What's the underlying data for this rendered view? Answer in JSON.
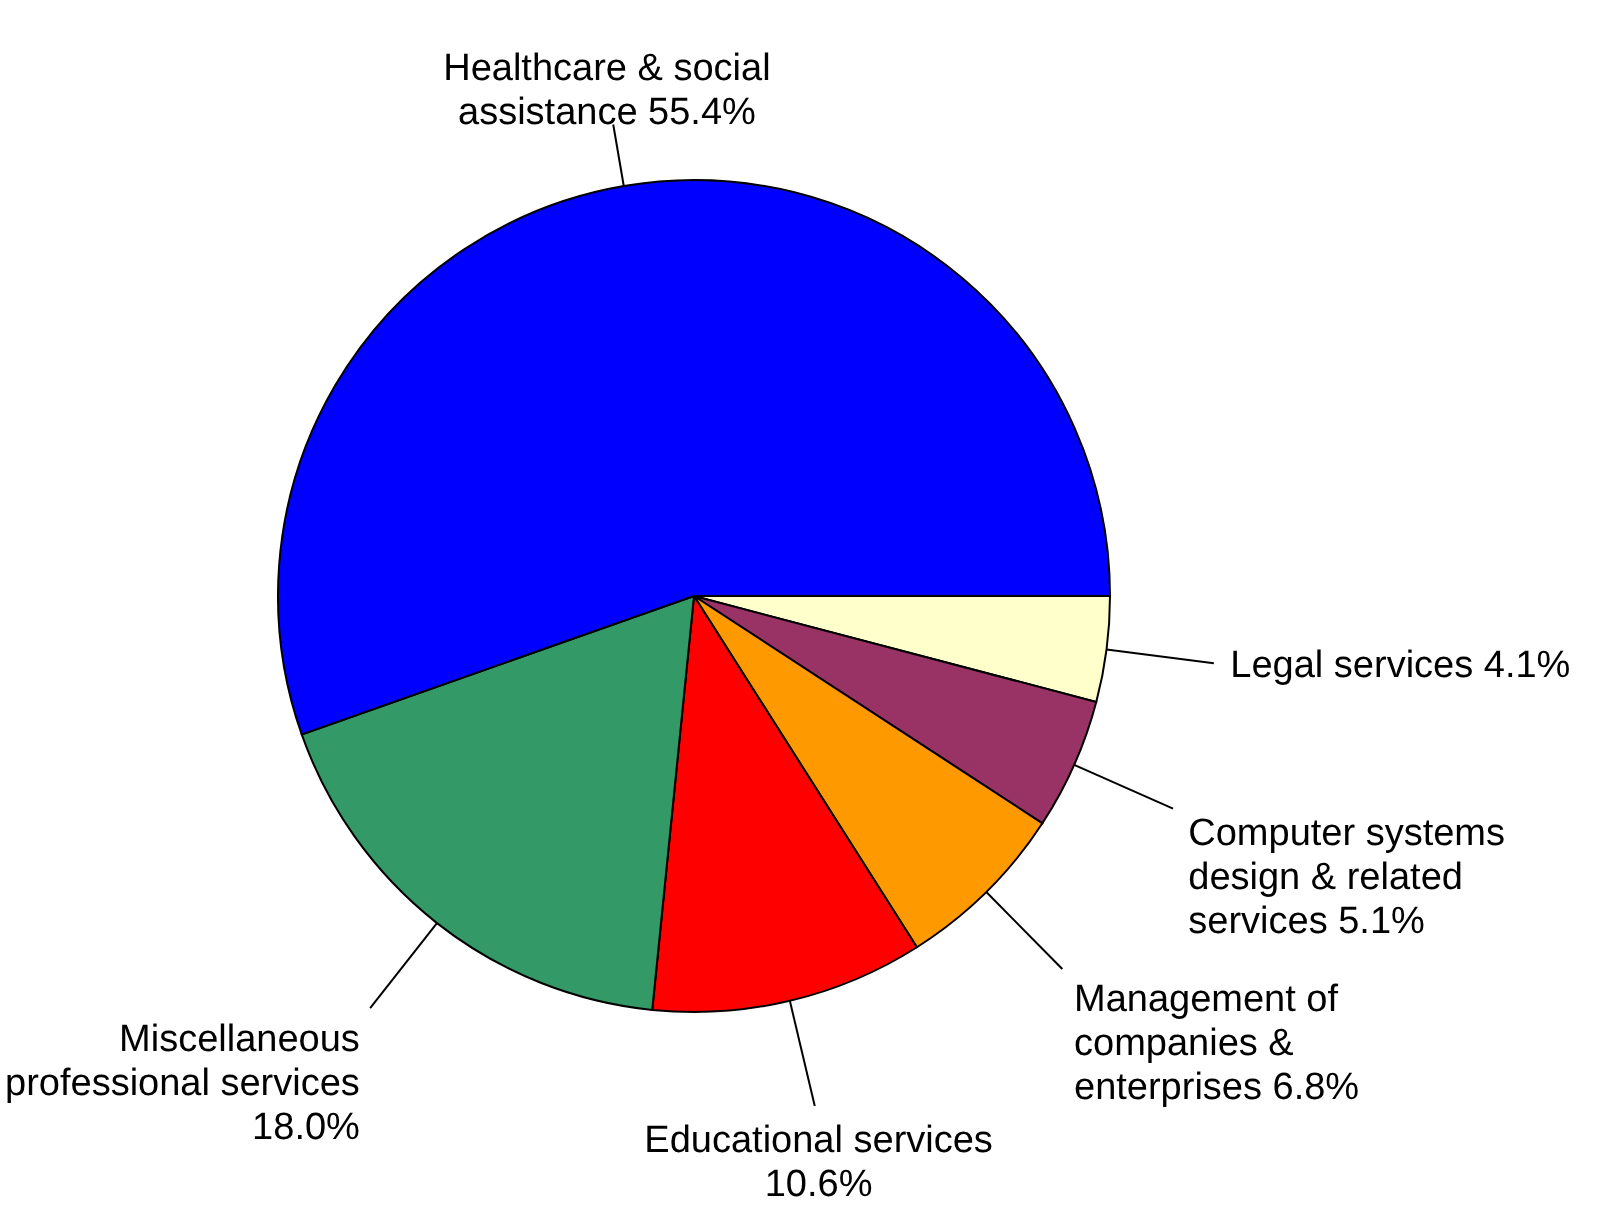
{
  "chart_data": {
    "type": "pie",
    "categories": [
      "Legal services",
      "Computer systems design & related services",
      "Management of companies & enterprises",
      "Educational services",
      "Miscellaneous professional services",
      "Healthcare & social assistance"
    ],
    "values": [
      4.1,
      5.1,
      6.8,
      10.6,
      18.0,
      55.4
    ],
    "colors": [
      "#ffffcc",
      "#993366",
      "#ff9900",
      "#ff0000",
      "#339966",
      "#0000ff"
    ],
    "value_labels": [
      "4.1%",
      "5.1%",
      "6.8%",
      "10.6%",
      "18.0%",
      "55.4%"
    ]
  }
}
